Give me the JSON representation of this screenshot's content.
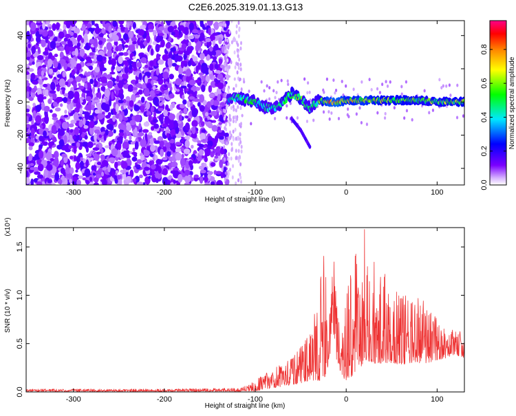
{
  "figure": {
    "title": "C2E6.2025.319.01.13.G13"
  },
  "chart_data": [
    {
      "type": "heatmap",
      "xlabel": "Height of straight line (km)",
      "ylabel": "Frequency (Hz)",
      "xlim": [
        -352,
        130
      ],
      "ylim": [
        -50,
        49
      ],
      "xticks": [
        -300,
        -200,
        -100,
        0,
        100
      ],
      "yticks": [
        -40,
        -20,
        0,
        20,
        40
      ],
      "colorbar": {
        "label": "Normalized spectral amplitude",
        "range": [
          0.0,
          0.97
        ],
        "ticks": [
          0.0,
          0.2,
          0.4,
          0.6,
          0.8
        ]
      },
      "noise_region": {
        "x": [
          -352,
          -130
        ],
        "freq": [
          -50,
          49
        ]
      },
      "signal_trace": [
        {
          "x": -130,
          "freq": 1,
          "amp": 0.45
        },
        {
          "x": -120,
          "freq": 3,
          "amp": 0.5
        },
        {
          "x": -110,
          "freq": 1,
          "amp": 0.55
        },
        {
          "x": -100,
          "freq": 0,
          "amp": 0.5
        },
        {
          "x": -90,
          "freq": -3,
          "amp": 0.5
        },
        {
          "x": -80,
          "freq": -4,
          "amp": 0.45
        },
        {
          "x": -70,
          "freq": 0,
          "amp": 0.55
        },
        {
          "x": -60,
          "freq": 5,
          "amp": 0.6
        },
        {
          "x": -50,
          "freq": 2,
          "amp": 0.6
        },
        {
          "x": -40,
          "freq": -4,
          "amp": 0.5
        },
        {
          "x": -30,
          "freq": 1,
          "amp": 0.55
        },
        {
          "x": -20,
          "freq": 0,
          "amp": 0.85
        },
        {
          "x": -10,
          "freq": 0,
          "amp": 0.9
        },
        {
          "x": 0,
          "freq": 1,
          "amp": 0.75
        },
        {
          "x": 20,
          "freq": 1,
          "amp": 0.8
        },
        {
          "x": 40,
          "freq": 1,
          "amp": 0.7
        },
        {
          "x": 60,
          "freq": 1,
          "amp": 0.7
        },
        {
          "x": 80,
          "freq": 1,
          "amp": 0.65
        },
        {
          "x": 100,
          "freq": 0,
          "amp": 0.65
        },
        {
          "x": 130,
          "freq": 0,
          "amp": 0.7
        }
      ],
      "side_branch": [
        {
          "x": -60,
          "freq": -10
        },
        {
          "x": -50,
          "freq": -17
        },
        {
          "x": -40,
          "freq": -27
        }
      ]
    },
    {
      "type": "line",
      "xlabel": "Height of straight line (km)",
      "ylabel": "SNR (10 * v/v)",
      "yunit": "(x10⁴)",
      "xlim": [
        -352,
        130
      ],
      "ylim": [
        0,
        1.7
      ],
      "xticks": [
        -300,
        -200,
        -100,
        0,
        100
      ],
      "yticks": [
        0.0,
        0.5,
        1.0,
        1.5
      ],
      "series_color": "#ee3333",
      "envelope": {
        "x": [
          -352,
          -200,
          -115,
          -100,
          -80,
          -60,
          -50,
          -40,
          -30,
          -25,
          -20,
          -15,
          -10,
          -5,
          0,
          5,
          10,
          15,
          20,
          25,
          30,
          35,
          40,
          50,
          60,
          70,
          80,
          90,
          100,
          110,
          120,
          130
        ],
        "min": [
          0.005,
          0.005,
          0.005,
          0.01,
          0.04,
          0.07,
          0.09,
          0.12,
          0.12,
          0.1,
          0.25,
          0.55,
          0.3,
          0.15,
          0.12,
          0.15,
          0.2,
          0.25,
          0.3,
          0.32,
          0.3,
          0.28,
          0.3,
          0.3,
          0.28,
          0.3,
          0.3,
          0.3,
          0.33,
          0.35,
          0.38,
          0.35
        ],
        "max": [
          0.03,
          0.03,
          0.04,
          0.12,
          0.24,
          0.34,
          0.46,
          0.6,
          1.0,
          1.44,
          0.95,
          1.57,
          0.85,
          0.6,
          0.95,
          1.3,
          1.48,
          1.0,
          1.7,
          1.1,
          1.45,
          1.05,
          1.3,
          0.98,
          1.1,
          0.9,
          1.0,
          0.88,
          0.75,
          0.62,
          0.65,
          0.6
        ]
      }
    }
  ]
}
